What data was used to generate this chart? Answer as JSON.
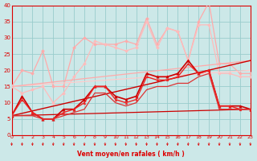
{
  "xlabel": "Vent moyen/en rafales ( km/h )",
  "bg_color": "#cce8e8",
  "grid_color": "#99cccc",
  "text_color": "#dd0000",
  "xlim": [
    0,
    23
  ],
  "ylim": [
    0,
    40
  ],
  "yticks": [
    0,
    5,
    10,
    15,
    20,
    25,
    30,
    35,
    40
  ],
  "xticks": [
    0,
    1,
    2,
    3,
    4,
    5,
    6,
    7,
    8,
    9,
    10,
    11,
    12,
    13,
    14,
    15,
    16,
    17,
    18,
    19,
    20,
    21,
    22,
    23
  ],
  "series": [
    {
      "x": [
        0,
        1,
        2,
        3,
        4,
        5,
        6,
        7,
        8,
        9,
        10,
        11,
        12,
        13,
        14,
        15,
        16,
        17,
        18,
        19,
        20,
        21,
        22,
        23
      ],
      "y": [
        15,
        20,
        19,
        26,
        15,
        15,
        27,
        30,
        28,
        28,
        28,
        29,
        28,
        36,
        28,
        33,
        32,
        23,
        35,
        41,
        22,
        22,
        19,
        19
      ],
      "color": "#ffaaaa",
      "lw": 0.9,
      "marker": "D",
      "ms": 2.0
    },
    {
      "x": [
        0,
        1,
        2,
        3,
        4,
        5,
        6,
        7,
        8,
        9,
        10,
        11,
        12,
        13,
        14,
        15,
        16,
        17,
        18,
        19,
        20,
        21,
        22,
        23
      ],
      "y": [
        15,
        13,
        14,
        15,
        10,
        13,
        18,
        22,
        29,
        28,
        27,
        26,
        27,
        35,
        27,
        33,
        32,
        23,
        34,
        34,
        19,
        19,
        18,
        18
      ],
      "color": "#ffbbbb",
      "lw": 0.9,
      "marker": "D",
      "ms": 2.0
    },
    {
      "x": [
        0,
        23
      ],
      "y": [
        15,
        20
      ],
      "color": "#ffcccc",
      "lw": 0.9,
      "marker": null,
      "ms": 0
    },
    {
      "x": [
        0,
        23
      ],
      "y": [
        15,
        23
      ],
      "color": "#ffaaaa",
      "lw": 0.9,
      "marker": null,
      "ms": 0
    },
    {
      "x": [
        0,
        23
      ],
      "y": [
        6,
        23
      ],
      "color": "#cc0000",
      "lw": 1.0,
      "marker": null,
      "ms": 0
    },
    {
      "x": [
        0,
        23
      ],
      "y": [
        6,
        8
      ],
      "color": "#cc0000",
      "lw": 0.9,
      "marker": null,
      "ms": 0
    },
    {
      "x": [
        0,
        1,
        2,
        3,
        4,
        5,
        6,
        7,
        8,
        9,
        10,
        11,
        12,
        13,
        14,
        15,
        16,
        17,
        18,
        19,
        20,
        21,
        22,
        23
      ],
      "y": [
        6,
        12,
        7,
        5,
        5,
        8,
        8,
        11,
        15,
        15,
        12,
        11,
        12,
        19,
        18,
        18,
        19,
        23,
        19,
        20,
        9,
        9,
        9,
        8
      ],
      "color": "#cc0000",
      "lw": 1.2,
      "marker": "^",
      "ms": 2.5
    },
    {
      "x": [
        0,
        1,
        2,
        3,
        4,
        5,
        6,
        7,
        8,
        9,
        10,
        11,
        12,
        13,
        14,
        15,
        16,
        17,
        18,
        19,
        20,
        21,
        22,
        23
      ],
      "y": [
        6,
        11,
        7,
        5,
        5,
        7,
        8,
        10,
        15,
        15,
        11,
        10,
        11,
        18,
        17,
        17,
        18,
        22,
        19,
        20,
        9,
        9,
        8,
        8
      ],
      "color": "#ee2222",
      "lw": 1.0,
      "marker": "^",
      "ms": 2.0
    },
    {
      "x": [
        0,
        1,
        2,
        3,
        4,
        5,
        6,
        7,
        8,
        9,
        10,
        11,
        12,
        13,
        14,
        15,
        16,
        17,
        18,
        19,
        20,
        21,
        22,
        23
      ],
      "y": [
        6,
        6,
        6,
        5,
        5,
        6,
        7,
        8,
        13,
        13,
        10,
        9,
        10,
        14,
        15,
        15,
        16,
        16,
        18,
        19,
        8,
        8,
        8,
        8
      ],
      "color": "#dd3333",
      "lw": 0.9,
      "marker": null,
      "ms": 0
    }
  ]
}
